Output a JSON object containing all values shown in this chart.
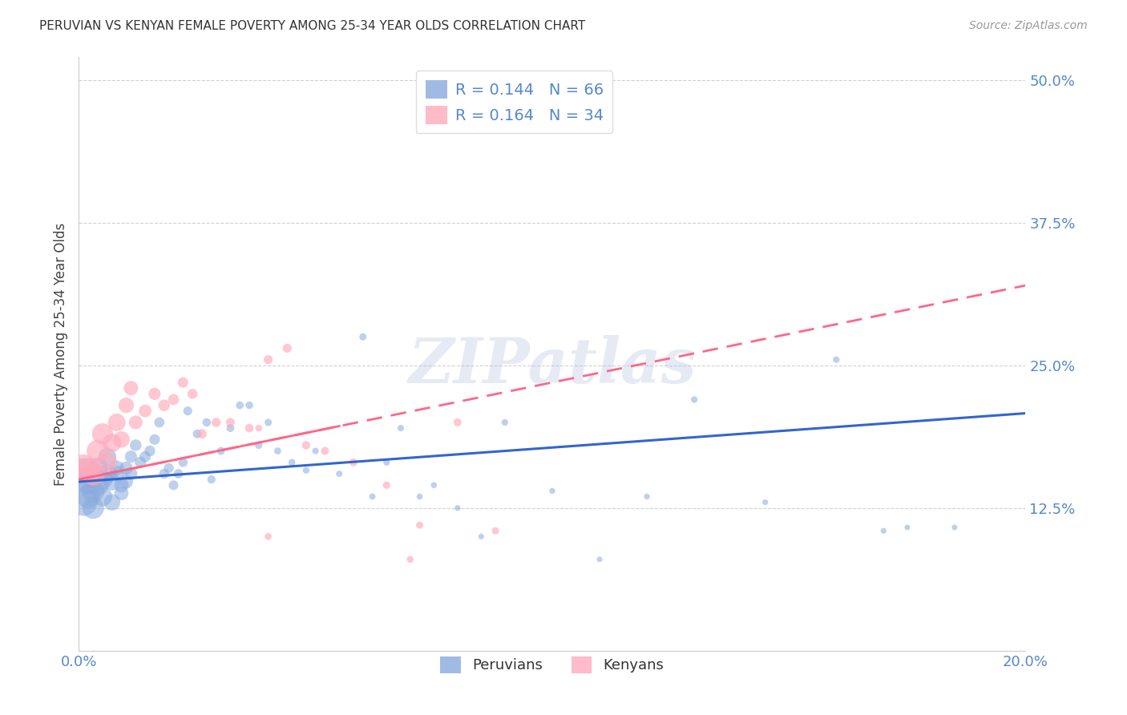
{
  "title": "PERUVIAN VS KENYAN FEMALE POVERTY AMONG 25-34 YEAR OLDS CORRELATION CHART",
  "source": "Source: ZipAtlas.com",
  "ylabel": "Female Poverty Among 25-34 Year Olds",
  "xlim": [
    0.0,
    0.2
  ],
  "ylim": [
    0.0,
    0.52
  ],
  "yticks": [
    0.0,
    0.125,
    0.25,
    0.375,
    0.5
  ],
  "ytick_labels": [
    "",
    "12.5%",
    "25.0%",
    "37.5%",
    "50.0%"
  ],
  "xticks": [
    0.0,
    0.05,
    0.1,
    0.15,
    0.2
  ],
  "xtick_labels": [
    "0.0%",
    "",
    "",
    "",
    "20.0%"
  ],
  "grid_color": "#cccccc",
  "background_color": "#ffffff",
  "title_color": "#333333",
  "axis_color": "#5588cc",
  "peruvian_color": "#88aadd",
  "kenyan_color": "#ffaabb",
  "peruvian_line_color": "#3366cc",
  "kenyan_line_color": "#ff6688",
  "R_peruvian": 0.144,
  "N_peruvian": 66,
  "R_kenyan": 0.164,
  "N_kenyan": 34,
  "legend_label_peruvian": "Peruvians",
  "legend_label_kenyan": "Kenyans",
  "peruvian_line_x0": 0.0,
  "peruvian_line_y0": 0.148,
  "peruvian_line_x1": 0.2,
  "peruvian_line_y1": 0.208,
  "kenyan_line_x0": 0.0,
  "kenyan_line_y0": 0.15,
  "kenyan_line_x1": 0.2,
  "kenyan_line_y1": 0.32,
  "peruvians_x": [
    0.001,
    0.001,
    0.002,
    0.002,
    0.003,
    0.003,
    0.004,
    0.004,
    0.005,
    0.005,
    0.006,
    0.006,
    0.007,
    0.007,
    0.008,
    0.008,
    0.009,
    0.009,
    0.01,
    0.01,
    0.011,
    0.011,
    0.012,
    0.013,
    0.014,
    0.015,
    0.016,
    0.017,
    0.018,
    0.019,
    0.02,
    0.021,
    0.022,
    0.023,
    0.025,
    0.027,
    0.028,
    0.03,
    0.032,
    0.034,
    0.036,
    0.038,
    0.04,
    0.042,
    0.045,
    0.048,
    0.05,
    0.055,
    0.06,
    0.062,
    0.065,
    0.068,
    0.072,
    0.075,
    0.08,
    0.085,
    0.09,
    0.1,
    0.11,
    0.12,
    0.13,
    0.145,
    0.16,
    0.17,
    0.175,
    0.185
  ],
  "peruvians_y": [
    0.155,
    0.13,
    0.148,
    0.135,
    0.14,
    0.125,
    0.145,
    0.16,
    0.15,
    0.135,
    0.155,
    0.17,
    0.148,
    0.13,
    0.155,
    0.16,
    0.145,
    0.138,
    0.148,
    0.16,
    0.155,
    0.17,
    0.18,
    0.165,
    0.17,
    0.175,
    0.185,
    0.2,
    0.155,
    0.16,
    0.145,
    0.155,
    0.165,
    0.21,
    0.19,
    0.2,
    0.15,
    0.175,
    0.195,
    0.215,
    0.215,
    0.18,
    0.2,
    0.175,
    0.165,
    0.158,
    0.175,
    0.155,
    0.275,
    0.135,
    0.165,
    0.195,
    0.135,
    0.145,
    0.125,
    0.1,
    0.2,
    0.14,
    0.08,
    0.135,
    0.22,
    0.13,
    0.255,
    0.105,
    0.108,
    0.108
  ],
  "peruvians_size": [
    800,
    600,
    500,
    450,
    420,
    380,
    360,
    340,
    320,
    300,
    280,
    260,
    240,
    220,
    200,
    180,
    170,
    160,
    150,
    140,
    130,
    120,
    110,
    105,
    100,
    95,
    90,
    85,
    80,
    78,
    75,
    72,
    68,
    65,
    62,
    58,
    55,
    52,
    50,
    48,
    46,
    44,
    42,
    40,
    38,
    36,
    35,
    33,
    42,
    32,
    35,
    33,
    30,
    30,
    28,
    27,
    35,
    28,
    25,
    28,
    35,
    27,
    35,
    27,
    25,
    25
  ],
  "kenyans_x": [
    0.001,
    0.002,
    0.003,
    0.004,
    0.005,
    0.006,
    0.007,
    0.008,
    0.009,
    0.01,
    0.011,
    0.012,
    0.014,
    0.016,
    0.018,
    0.02,
    0.022,
    0.024,
    0.026,
    0.029,
    0.032,
    0.036,
    0.04,
    0.044,
    0.048,
    0.052,
    0.058,
    0.065,
    0.072,
    0.08,
    0.088,
    0.07,
    0.04,
    0.038
  ],
  "kenyans_y": [
    0.16,
    0.158,
    0.155,
    0.175,
    0.19,
    0.165,
    0.182,
    0.2,
    0.185,
    0.215,
    0.23,
    0.2,
    0.21,
    0.225,
    0.215,
    0.22,
    0.235,
    0.225,
    0.19,
    0.2,
    0.2,
    0.195,
    0.255,
    0.265,
    0.18,
    0.175,
    0.165,
    0.145,
    0.11,
    0.2,
    0.105,
    0.08,
    0.1,
    0.195
  ],
  "kenyans_size": [
    600,
    500,
    440,
    400,
    360,
    320,
    280,
    250,
    220,
    195,
    170,
    150,
    130,
    120,
    110,
    100,
    90,
    82,
    75,
    70,
    65,
    60,
    65,
    65,
    55,
    52,
    50,
    45,
    42,
    52,
    42,
    38,
    38,
    38
  ],
  "watermark": "ZIPatlas",
  "watermark_color": "#aabbdd"
}
